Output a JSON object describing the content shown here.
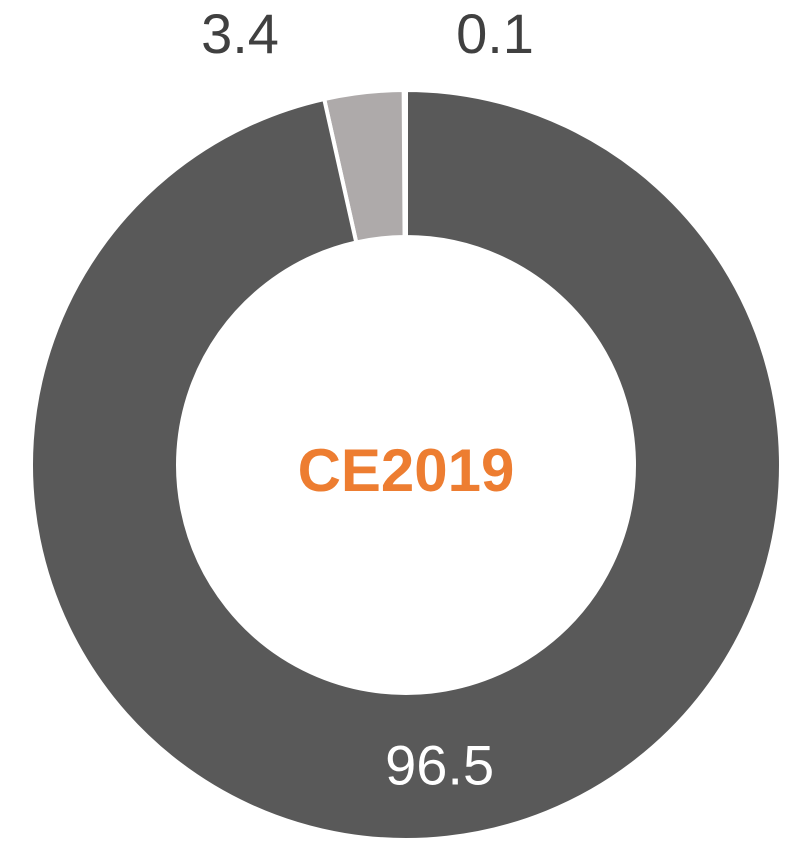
{
  "chart_data": {
    "type": "donut",
    "center_label": "CE2019",
    "values": [
      96.5,
      3.4,
      0.1
    ],
    "colors": [
      "#595959",
      "#aeaaaa",
      "#7f7f7f"
    ]
  }
}
